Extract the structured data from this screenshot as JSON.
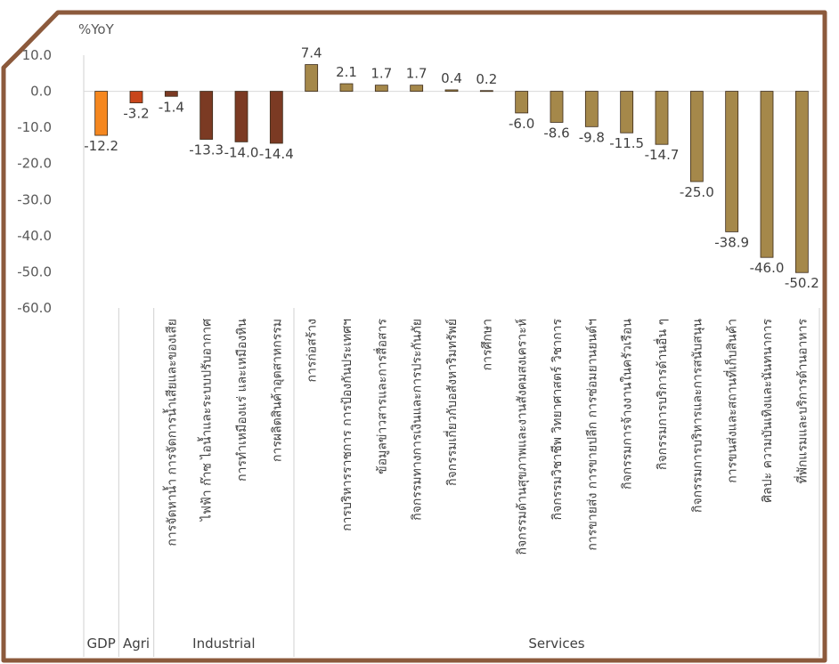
{
  "chart_data": {
    "type": "bar",
    "ylabel": "%YoY",
    "ylim": [
      -60,
      10
    ],
    "yticks": [
      "10.0",
      "0.0",
      "-10.0",
      "-20.0",
      "-30.0",
      "-40.0",
      "-50.0",
      "-60.0"
    ],
    "grid": false,
    "categories": [
      {
        "label": "",
        "value": -12.2,
        "value_label": "-12.2",
        "color": "#f5871f"
      },
      {
        "label": "",
        "value": -3.2,
        "value_label": "-3.2",
        "color": "#c8461b"
      },
      {
        "label": "การจัดหาน้ำ การจัดการน้ำเสียและของเสีย",
        "value": -1.4,
        "value_label": "-1.4",
        "color": "#7b3a23"
      },
      {
        "label": "ไฟฟ้า ก๊าซ ไอน้ำและระบบปรับอากาศ",
        "value": -13.3,
        "value_label": "-13.3",
        "color": "#7b3a23"
      },
      {
        "label": "การทำเหมืองแร่ และเหมืองหิน",
        "value": -14.0,
        "value_label": "-14.0",
        "color": "#7b3a23"
      },
      {
        "label": "การผลิตสินค้าอุตสาหกรรม",
        "value": -14.4,
        "value_label": "-14.4",
        "color": "#7b3a23"
      },
      {
        "label": "การก่อสร้าง",
        "value": 7.4,
        "value_label": "7.4",
        "color": "#a5884a"
      },
      {
        "label": "การบริหารราชการ การป้องกันประเทศฯ",
        "value": 2.1,
        "value_label": "2.1",
        "color": "#a5884a"
      },
      {
        "label": "ข้อมูลข่าวสารและการสื่อสาร",
        "value": 1.7,
        "value_label": "1.7",
        "color": "#a5884a"
      },
      {
        "label": "กิจกรรมทางการเงินและการประกันภัย",
        "value": 1.7,
        "value_label": "1.7",
        "color": "#a5884a"
      },
      {
        "label": "กิจกรรมเกี่ยวกับอสังหาริมทรัพย์",
        "value": 0.4,
        "value_label": "0.4",
        "color": "#a5884a"
      },
      {
        "label": "การศึกษา",
        "value": 0.2,
        "value_label": "0.2",
        "color": "#a5884a"
      },
      {
        "label": "กิจกรรมด้านสุขภาพและงานสังคมสงเคราะห์",
        "value": -6.0,
        "value_label": "-6.0",
        "color": "#a5884a"
      },
      {
        "label": "กิจกรรมวิชาชีพ วิทยาศาสตร์ วิชาการ",
        "value": -8.6,
        "value_label": "-8.6",
        "color": "#a5884a"
      },
      {
        "label": "การขายส่ง การขายปลีก การซ่อมยานยนต์ฯ",
        "value": -9.8,
        "value_label": "-9.8",
        "color": "#a5884a"
      },
      {
        "label": "กิจกรรมการจ้างงานในครัวเรือน",
        "value": -11.5,
        "value_label": "-11.5",
        "color": "#a5884a"
      },
      {
        "label": "กิจกรรมการบริการด้านอื่น ๆ",
        "value": -14.7,
        "value_label": "-14.7",
        "color": "#a5884a"
      },
      {
        "label": "กิจกรรมการบริหารและการสนับสนุน",
        "value": -25.0,
        "value_label": "-25.0",
        "color": "#a5884a"
      },
      {
        "label": "การขนส่งและสถานที่เก็บสินค้า",
        "value": -38.9,
        "value_label": "-38.9",
        "color": "#a5884a"
      },
      {
        "label": "ศิลปะ ความบันเทิงและนันทนาการ",
        "value": -46.0,
        "value_label": "-46.0",
        "color": "#a5884a"
      },
      {
        "label": "ที่พักแรมและบริการด้านอาหาร",
        "value": -50.2,
        "value_label": "-50.2",
        "color": "#a5884a"
      }
    ],
    "groups": [
      {
        "label": "GDP",
        "start": 0,
        "end": 0
      },
      {
        "label": "Agri",
        "start": 1,
        "end": 1
      },
      {
        "label": "Industrial",
        "start": 2,
        "end": 5
      },
      {
        "label": "Services",
        "start": 6,
        "end": 20
      }
    ],
    "frame_color": "#8c5a3c"
  }
}
